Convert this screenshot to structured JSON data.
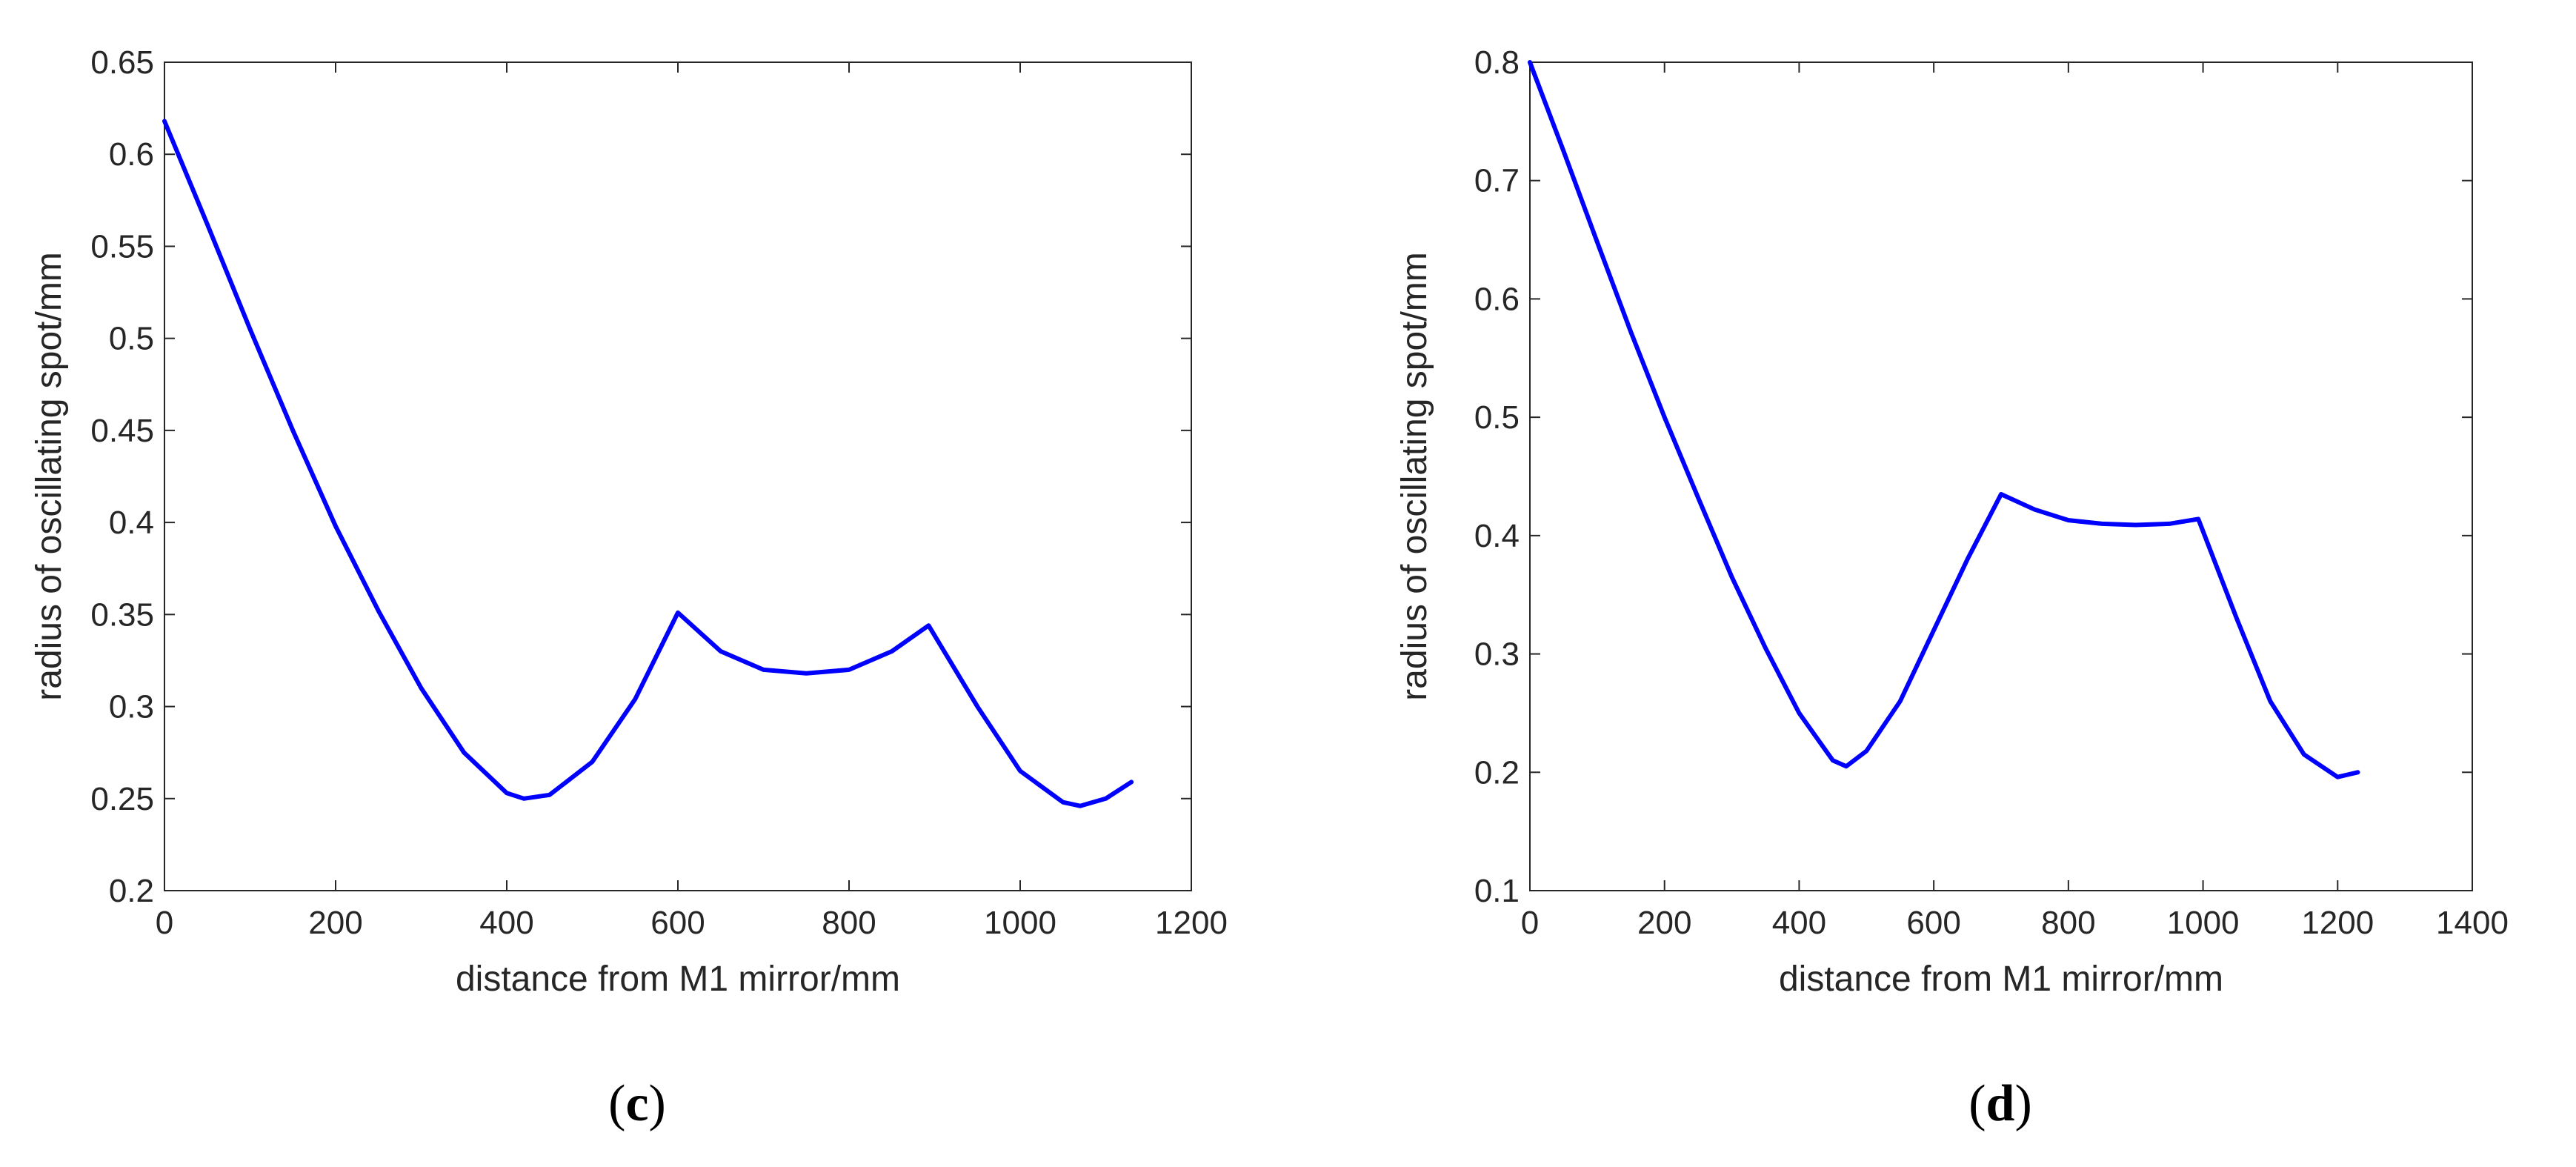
{
  "chart_data": [
    {
      "type": "line",
      "panel_label": {
        "open": "(",
        "letter": "c",
        "close": ")"
      },
      "title": "",
      "xlabel": "distance from M1 mirror/mm",
      "ylabel": "radius of oscillating spot/mm",
      "xlim": [
        0,
        1200
      ],
      "ylim": [
        0.2,
        0.65
      ],
      "xticks": [
        0,
        200,
        400,
        600,
        800,
        1000,
        1200
      ],
      "yticks": [
        0.2,
        0.25,
        0.3,
        0.35,
        0.4,
        0.45,
        0.5,
        0.55,
        0.6,
        0.65
      ],
      "xtick_labels": [
        "0",
        "200",
        "400",
        "600",
        "800",
        "1000",
        "1200"
      ],
      "ytick_labels": [
        "0.2",
        "0.25",
        "0.3",
        "0.35",
        "0.4",
        "0.45",
        "0.5",
        "0.55",
        "0.6",
        "0.65"
      ],
      "grid": false,
      "series": [
        {
          "color": "#0000ff",
          "x": [
            0,
            50,
            100,
            150,
            200,
            250,
            300,
            350,
            400,
            420,
            450,
            500,
            550,
            600,
            650,
            700,
            750,
            800,
            850,
            893,
            950,
            1000,
            1050,
            1070,
            1100,
            1130
          ],
          "y": [
            0.618,
            0.562,
            0.505,
            0.45,
            0.398,
            0.352,
            0.31,
            0.275,
            0.253,
            0.25,
            0.252,
            0.27,
            0.304,
            0.351,
            0.33,
            0.32,
            0.318,
            0.32,
            0.33,
            0.344,
            0.3,
            0.265,
            0.248,
            0.246,
            0.25,
            0.259
          ]
        }
      ]
    },
    {
      "type": "line",
      "panel_label": {
        "open": "(",
        "letter": "d",
        "close": ")"
      },
      "title": "",
      "xlabel": "distance from M1 mirror/mm",
      "ylabel": "radius of oscillating spot/mm",
      "xlim": [
        0,
        1400
      ],
      "ylim": [
        0.1,
        0.8
      ],
      "xticks": [
        0,
        200,
        400,
        600,
        800,
        1000,
        1200,
        1400
      ],
      "yticks": [
        0.1,
        0.2,
        0.3,
        0.4,
        0.5,
        0.6,
        0.7,
        0.8
      ],
      "xtick_labels": [
        "0",
        "200",
        "400",
        "600",
        "800",
        "1000",
        "1200",
        "1400"
      ],
      "ytick_labels": [
        "0.1",
        "0.2",
        "0.3",
        "0.4",
        "0.5",
        "0.6",
        "0.7",
        "0.8"
      ],
      "grid": false,
      "series": [
        {
          "color": "#0000ff",
          "x": [
            0,
            50,
            100,
            150,
            200,
            250,
            300,
            350,
            400,
            450,
            470,
            500,
            550,
            600,
            650,
            700,
            750,
            800,
            850,
            900,
            950,
            993,
            1050,
            1100,
            1150,
            1200,
            1230
          ],
          "y": [
            0.8,
            0.725,
            0.648,
            0.572,
            0.5,
            0.432,
            0.365,
            0.305,
            0.25,
            0.21,
            0.205,
            0.218,
            0.26,
            0.32,
            0.38,
            0.435,
            0.422,
            0.413,
            0.41,
            0.409,
            0.41,
            0.414,
            0.33,
            0.26,
            0.215,
            0.196,
            0.2
          ]
        }
      ]
    }
  ]
}
